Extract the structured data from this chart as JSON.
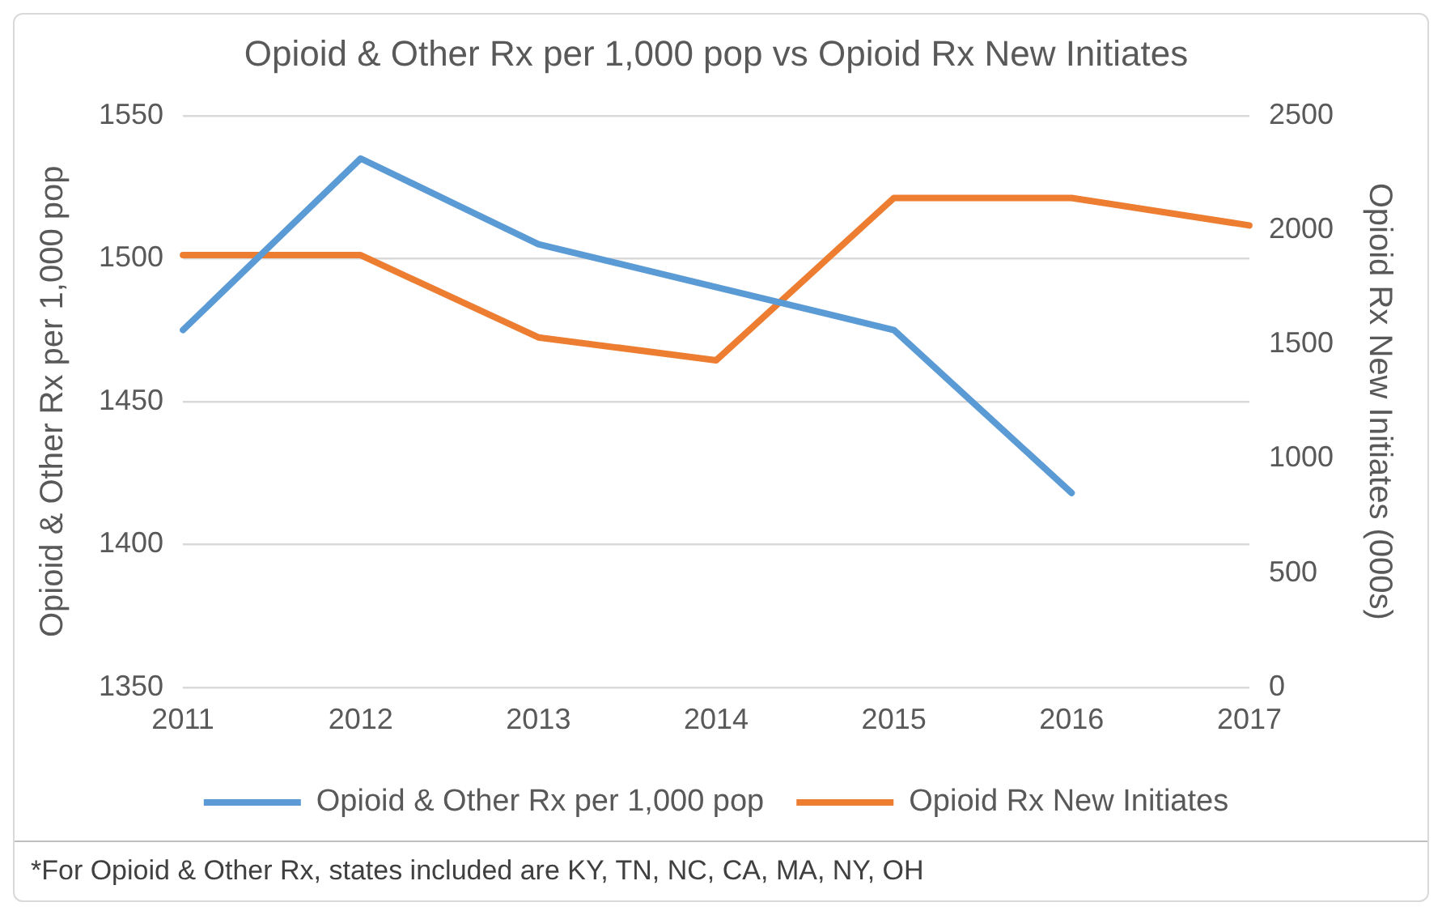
{
  "chart_data": {
    "type": "line",
    "title": "Opioid & Other Rx per 1,000 pop vs Opioid Rx New Initiates",
    "ylabel": "Opioid & Other Rx per 1,000 pop",
    "y2label": "Opioid Rx New Initiates (000s)",
    "categories": [
      "2011",
      "2012",
      "2013",
      "2014",
      "2015",
      "2016",
      "2017"
    ],
    "series": [
      {
        "name": "Opioid & Other Rx per 1,000 pop",
        "color": "#5b9bd5",
        "values": [
          1475,
          1535,
          1505,
          1490,
          1475,
          1418,
          null
        ]
      },
      {
        "name": "Opioid Rx New Initiates",
        "color": "#ed7d31",
        "axis": "y2",
        "values": [
          1890,
          1890,
          1530,
          1430,
          2140,
          2140,
          2020
        ]
      }
    ],
    "ylim": [
      1350,
      1550
    ],
    "yticks": [
      1350,
      1400,
      1450,
      1500,
      1550
    ],
    "y2lim": [
      0,
      2500
    ],
    "y2ticks": [
      0,
      500,
      1000,
      1500,
      2000,
      2500
    ],
    "grid": "y",
    "legend": "bottom",
    "marker": "none",
    "line_style": "solid",
    "annotations": [
      "*For Opioid & Other Rx, states included are KY, TN, NC, CA, MA, NY, OH"
    ]
  }
}
